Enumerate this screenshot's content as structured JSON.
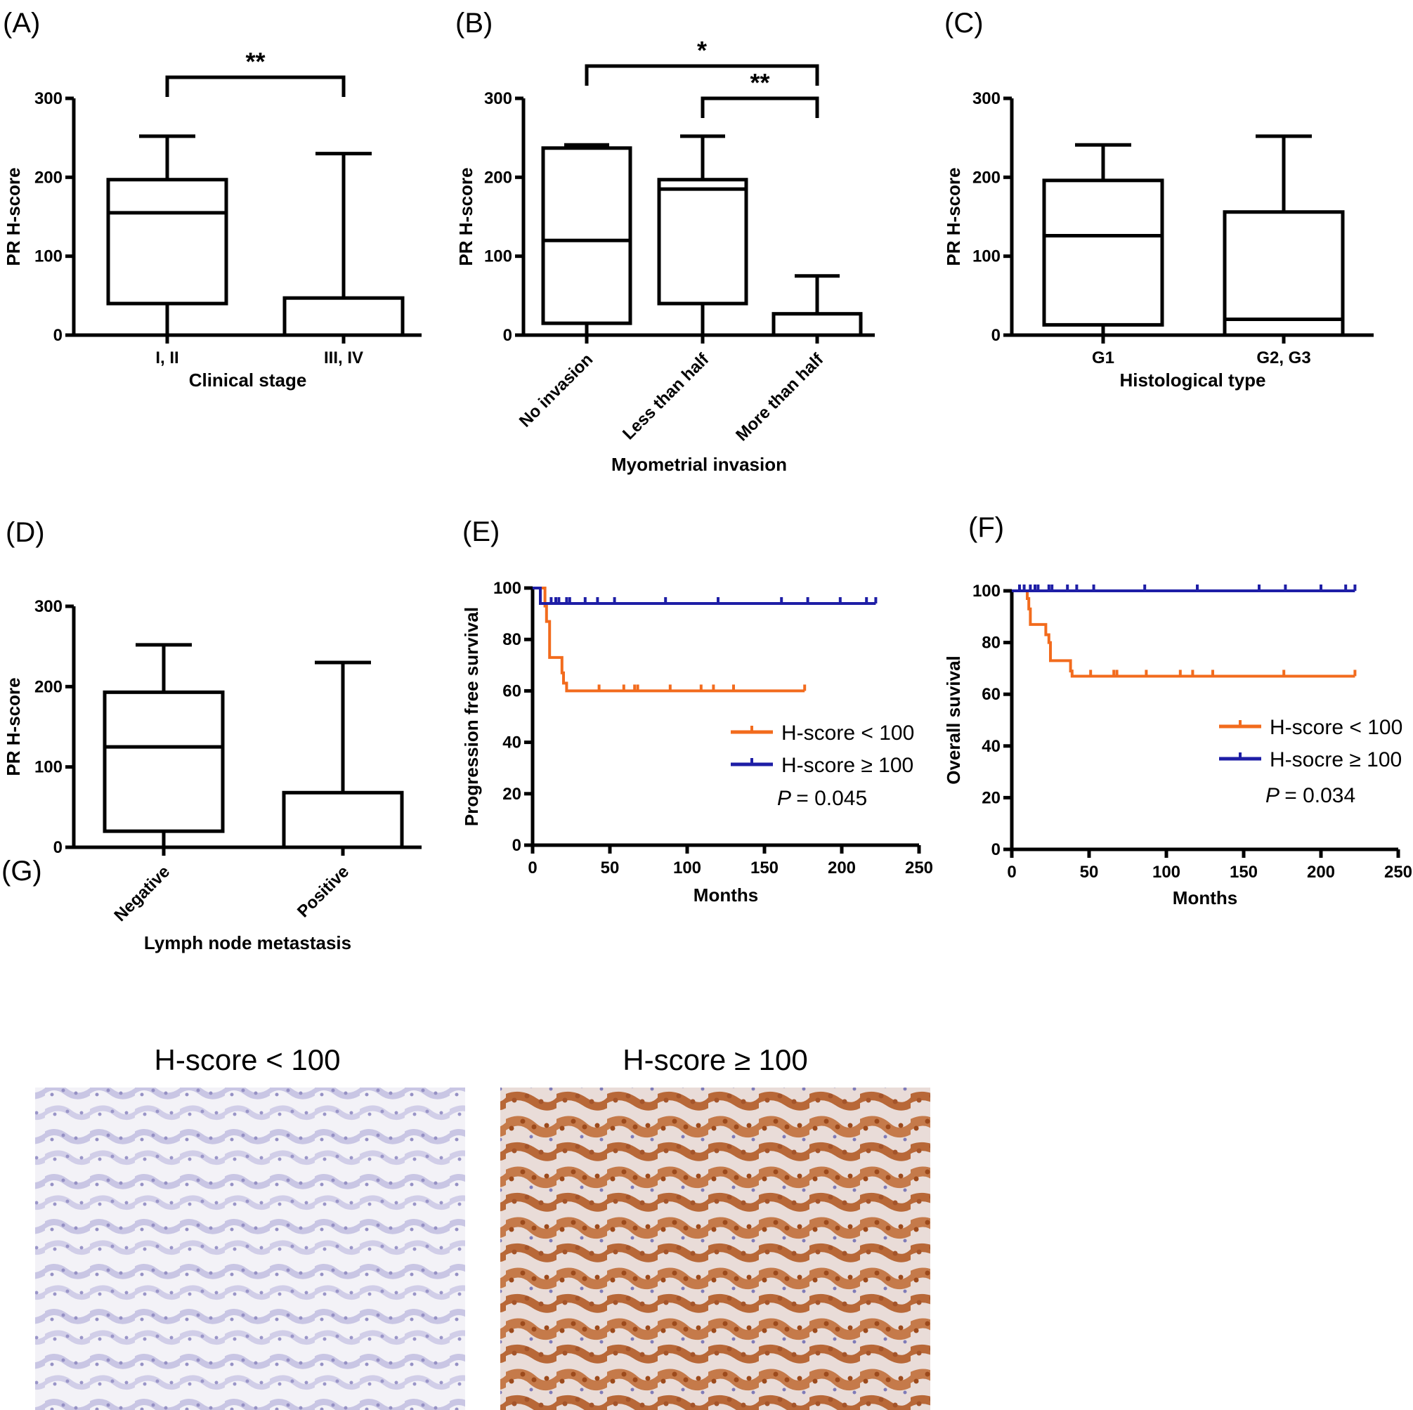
{
  "chart_data": [
    {
      "id": "A",
      "type": "box",
      "label": "(A)",
      "ylabel": "PR H-score",
      "xlabel": "Clinical stage",
      "ylim": [
        0,
        300
      ],
      "yticks": [
        0,
        100,
        200,
        300
      ],
      "categories": [
        "I, II",
        "III, IV"
      ],
      "boxes": [
        {
          "min": 0,
          "q1": 40,
          "median": 155,
          "q3": 197,
          "max": 252
        },
        {
          "min": 0,
          "q1": 0,
          "median": 0,
          "q3": 47,
          "max": 230
        }
      ],
      "brackets": [
        {
          "from": 0,
          "to": 1,
          "text": "**",
          "level": 0
        }
      ]
    },
    {
      "id": "B",
      "type": "box",
      "label": "(B)",
      "ylabel": "PR H-score",
      "xlabel": "Myometrial invasion",
      "ylim": [
        0,
        300
      ],
      "yticks": [
        0,
        100,
        200,
        300
      ],
      "categories": [
        "No invasion",
        "Less than half",
        "More than half"
      ],
      "rotate": true,
      "boxes": [
        {
          "min": 0,
          "q1": 15,
          "median": 120,
          "q3": 237,
          "max": 241
        },
        {
          "min": 0,
          "q1": 40,
          "median": 185,
          "q3": 197,
          "max": 252
        },
        {
          "min": 0,
          "q1": 0,
          "median": 0,
          "q3": 27,
          "max": 75
        }
      ],
      "brackets": [
        {
          "from": 0,
          "to": 2,
          "text": "*",
          "level": 1
        },
        {
          "from": 1,
          "to": 2,
          "text": "**",
          "level": 0
        }
      ]
    },
    {
      "id": "C",
      "type": "box",
      "label": "(C)",
      "ylabel": "PR H-score",
      "xlabel": "Histological type",
      "ylim": [
        0,
        300
      ],
      "yticks": [
        0,
        100,
        200,
        300
      ],
      "categories": [
        "G1",
        "G2, G3"
      ],
      "boxes": [
        {
          "min": 0,
          "q1": 13,
          "median": 126,
          "q3": 196,
          "max": 241
        },
        {
          "min": 0,
          "q1": 0,
          "median": 20,
          "q3": 156,
          "max": 252
        }
      ],
      "brackets": []
    },
    {
      "id": "D",
      "type": "box",
      "label": "(D)",
      "ylabel": "PR H-score",
      "xlabel": "Lymph node metastasis",
      "ylim": [
        0,
        300
      ],
      "yticks": [
        0,
        100,
        200,
        300
      ],
      "categories": [
        "Negative",
        "Positive"
      ],
      "rotate": true,
      "boxes": [
        {
          "min": 0,
          "q1": 20,
          "median": 125,
          "q3": 193,
          "max": 252
        },
        {
          "min": 0,
          "q1": 0,
          "median": 0,
          "q3": 68,
          "max": 230
        }
      ],
      "brackets": []
    },
    {
      "id": "E",
      "type": "line",
      "label": "(E)",
      "ylabel": "Progression free survival",
      "xlabel": "Months",
      "xlim": [
        0,
        250
      ],
      "ylim": [
        0,
        100
      ],
      "xticks": [
        0,
        50,
        100,
        150,
        200,
        250
      ],
      "yticks": [
        0,
        20,
        40,
        60,
        80,
        100
      ],
      "series": [
        {
          "name": "H-score < 100",
          "color": "#f26b1d",
          "x": [
            0,
            8,
            8,
            9,
            9,
            11,
            11,
            19,
            19,
            20,
            20,
            22,
            22,
            176
          ],
          "y": [
            100,
            100,
            93,
            93,
            87,
            87,
            73,
            73,
            67,
            67,
            63,
            63,
            60,
            60
          ],
          "censor": [
            43,
            59,
            66,
            68,
            89,
            109,
            117,
            130,
            176
          ]
        },
        {
          "name": "H-score ≥ 100",
          "color": "#1e1ea6",
          "x": [
            0,
            5,
            5,
            222
          ],
          "y": [
            100,
            100,
            94,
            94
          ],
          "censor": [
            12,
            15,
            17,
            22,
            24,
            34,
            42,
            53,
            86,
            120,
            161,
            178,
            199,
            216,
            222
          ]
        }
      ],
      "annotation": "= 0.045"
    },
    {
      "id": "F",
      "type": "line",
      "label": "(F)",
      "ylabel": "Overall suvival",
      "xlabel": "Months",
      "xlim": [
        0,
        250
      ],
      "ylim": [
        0,
        100
      ],
      "xticks": [
        0,
        50,
        100,
        150,
        200,
        250
      ],
      "yticks": [
        0,
        20,
        40,
        60,
        80,
        100
      ],
      "series": [
        {
          "name": "H-score < 100",
          "color": "#f26b1d",
          "x": [
            0,
            10,
            10,
            11,
            11,
            12,
            12,
            22,
            22,
            24,
            24,
            25,
            25,
            38,
            38,
            39,
            39,
            222
          ],
          "y": [
            100,
            100,
            97,
            97,
            93,
            93,
            87,
            87,
            83,
            83,
            80,
            80,
            73,
            73,
            69,
            69,
            67,
            67
          ],
          "censor": [
            51,
            66,
            68,
            87,
            109,
            117,
            130,
            176,
            222
          ]
        },
        {
          "name": "H-socre ≥ 100",
          "color": "#1e1ea6",
          "x": [
            0,
            222
          ],
          "y": [
            100,
            100
          ],
          "censor": [
            5,
            8,
            12,
            15,
            17,
            24,
            26,
            36,
            42,
            53,
            86,
            120,
            160,
            177,
            200,
            216,
            222
          ]
        }
      ],
      "annotation": "= 0.034"
    }
  ],
  "panel_g": {
    "label": "(G)",
    "left_title": "H-score  < 100",
    "right_title": "H-score  ≥ 100"
  },
  "p_symbol": "P"
}
